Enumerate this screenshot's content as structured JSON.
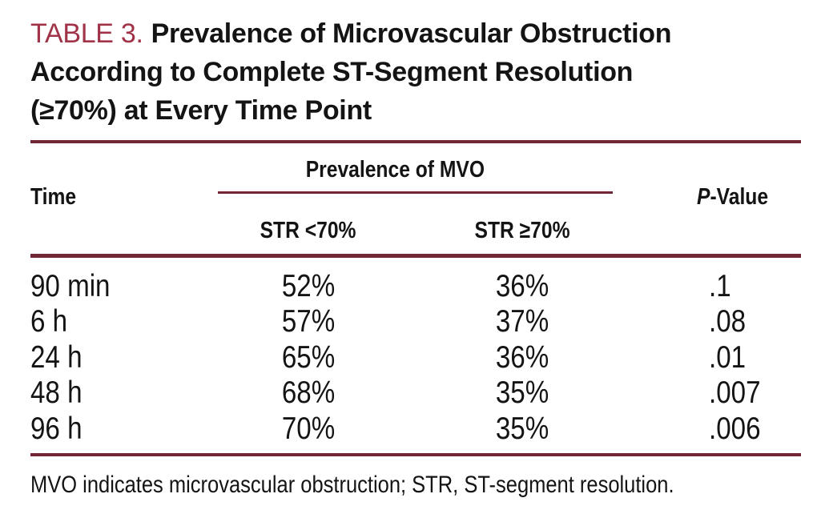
{
  "title": {
    "label": "TABLE 3.",
    "line1_rest": "Prevalence of Microvascular Obstruction",
    "line2": "According to Complete ST-Segment Resolution",
    "line3": "(≥70%) at Every Time Point"
  },
  "colors": {
    "accent_label_red": "#A13349",
    "rule_maroon": "#702634",
    "text_black": "#141414",
    "background": "#FFFFFF"
  },
  "table": {
    "time_header": "Time",
    "group_header": "Prevalence of MVO",
    "sub_headers": [
      "STR <70%",
      "STR ≥70%"
    ],
    "pvalue_header_italic": "P",
    "pvalue_header_rest": "-Value",
    "rows": [
      {
        "time": "90 min",
        "str_lt70": "52%",
        "str_ge70": "36%",
        "p": ".1"
      },
      {
        "time": "6 h",
        "str_lt70": "57%",
        "str_ge70": "37%",
        "p": ".08"
      },
      {
        "time": "24 h",
        "str_lt70": "65%",
        "str_ge70": "36%",
        "p": ".01"
      },
      {
        "time": "48 h",
        "str_lt70": "68%",
        "str_ge70": "35%",
        "p": ".007"
      },
      {
        "time": "96 h",
        "str_lt70": "70%",
        "str_ge70": "35%",
        "p": ".006"
      }
    ],
    "footnote": "MVO indicates microvascular obstruction; STR, ST-segment resolution."
  }
}
